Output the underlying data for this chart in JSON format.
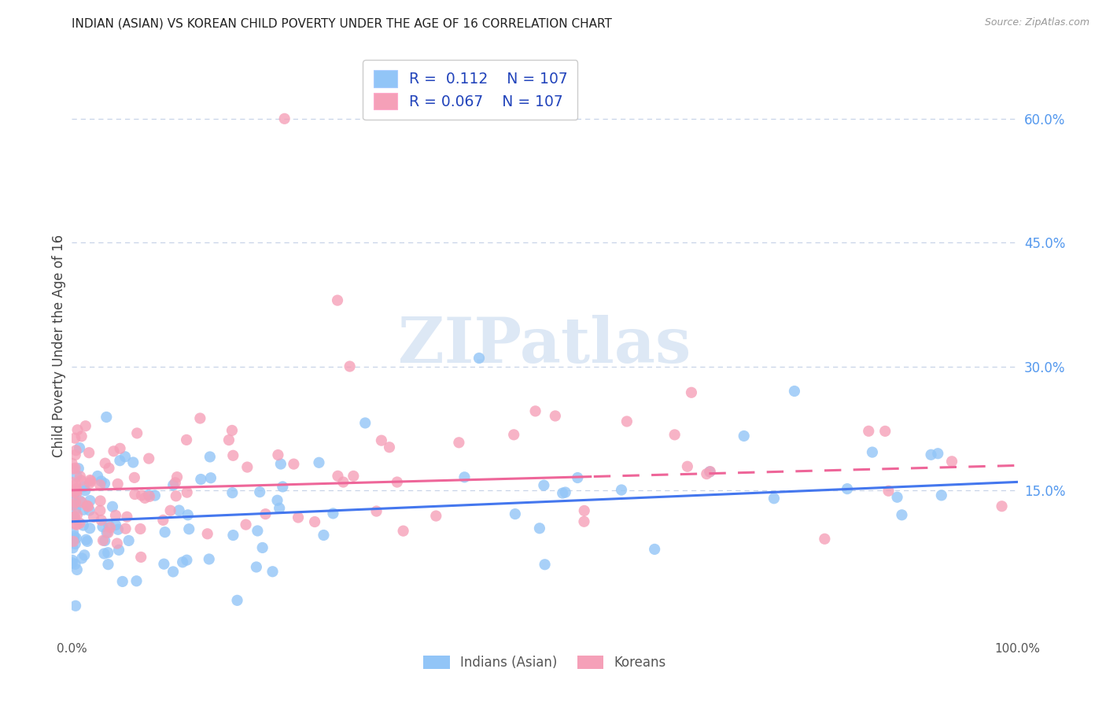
{
  "title": "INDIAN (ASIAN) VS KOREAN CHILD POVERTY UNDER THE AGE OF 16 CORRELATION CHART",
  "source": "Source: ZipAtlas.com",
  "ylabel": "Child Poverty Under the Age of 16",
  "xlim": [
    0,
    1.0
  ],
  "ylim": [
    -0.03,
    0.68
  ],
  "blue_color": "#92c5f7",
  "pink_color": "#f5a0b8",
  "trend_blue_color": "#4477ee",
  "trend_pink_color": "#ee6699",
  "r_blue": 0.112,
  "n_blue": 107,
  "r_pink": 0.067,
  "n_pink": 107,
  "legend_label_blue": "Indians (Asian)",
  "legend_label_pink": "Koreans",
  "watermark": "ZIPatlas",
  "background_color": "#ffffff",
  "grid_color": "#c8d4e8",
  "right_ytick_color": "#5599ee",
  "title_color": "#222222",
  "source_color": "#999999",
  "ylabel_color": "#444444",
  "xtick_color": "#555555",
  "legend_text_color": "#2244bb"
}
